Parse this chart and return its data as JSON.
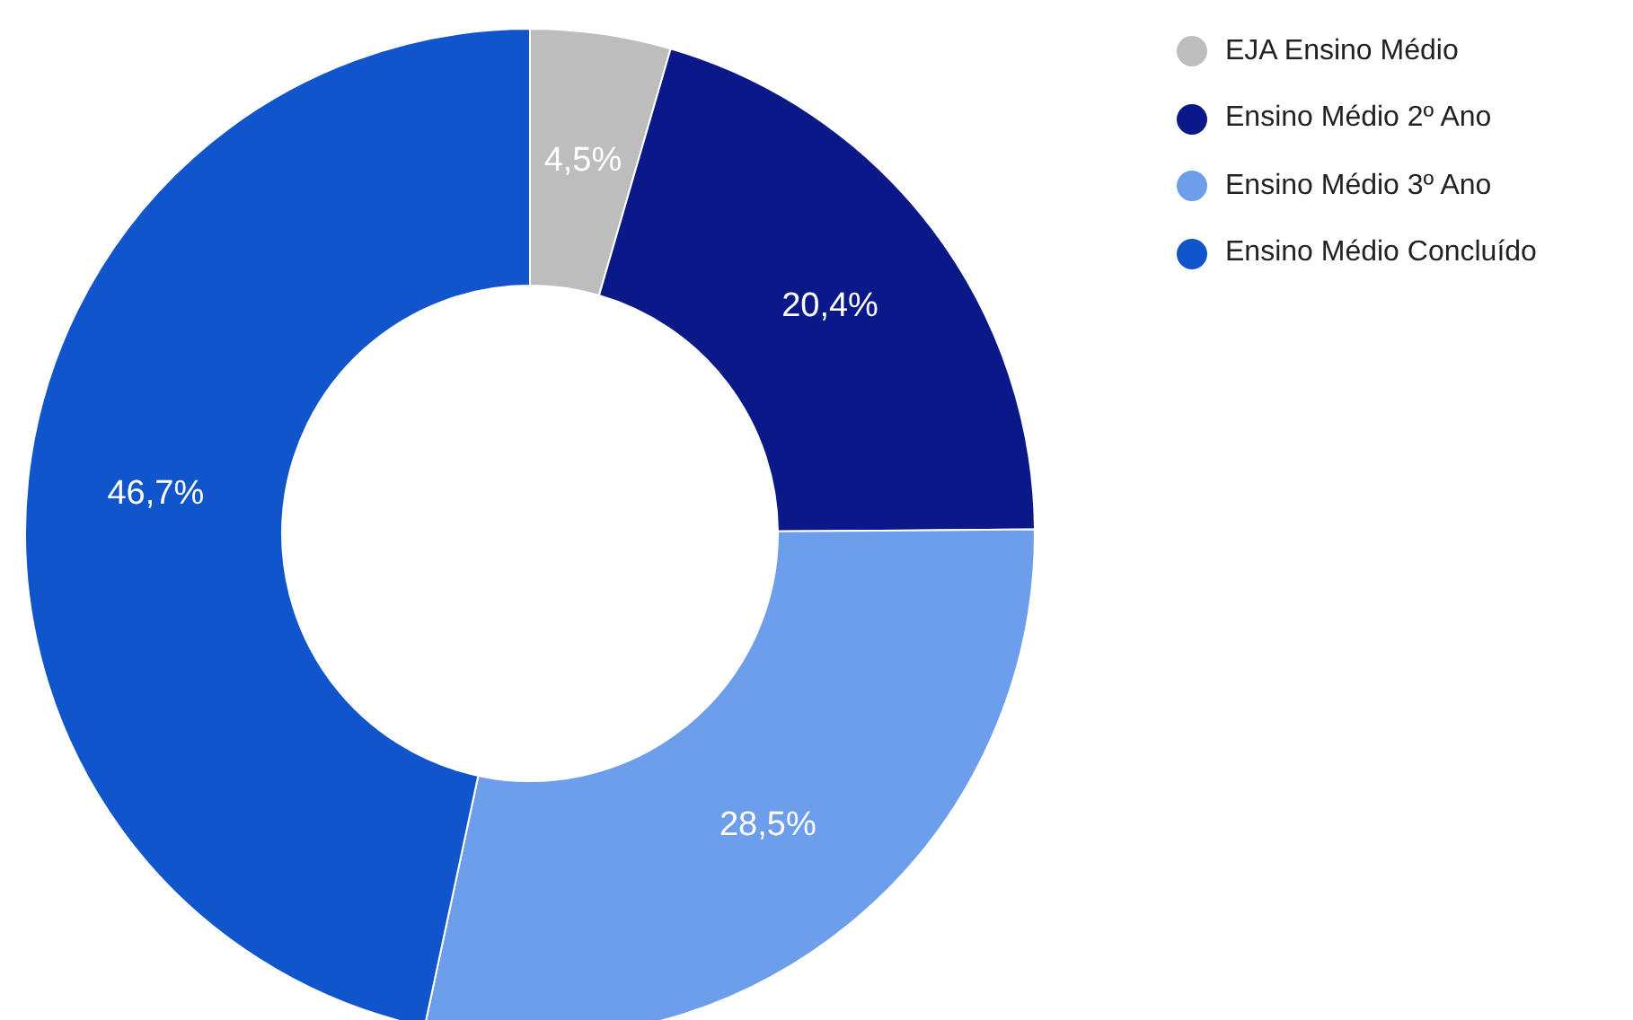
{
  "chart_data": {
    "type": "donut",
    "categories": [
      "EJA Ensino Médio",
      "Ensino Médio 2º Ano",
      "Ensino Médio 3º Ano",
      "Ensino Médio Concluído"
    ],
    "values": [
      4.5,
      20.4,
      28.5,
      46.7
    ],
    "value_labels": [
      "4,5%",
      "20,4%",
      "28,5%",
      "46,7%"
    ],
    "colors": [
      "#bdbdbd",
      "#0b1887",
      "#6d9eeb",
      "#1155cc"
    ],
    "legend": "top right"
  }
}
